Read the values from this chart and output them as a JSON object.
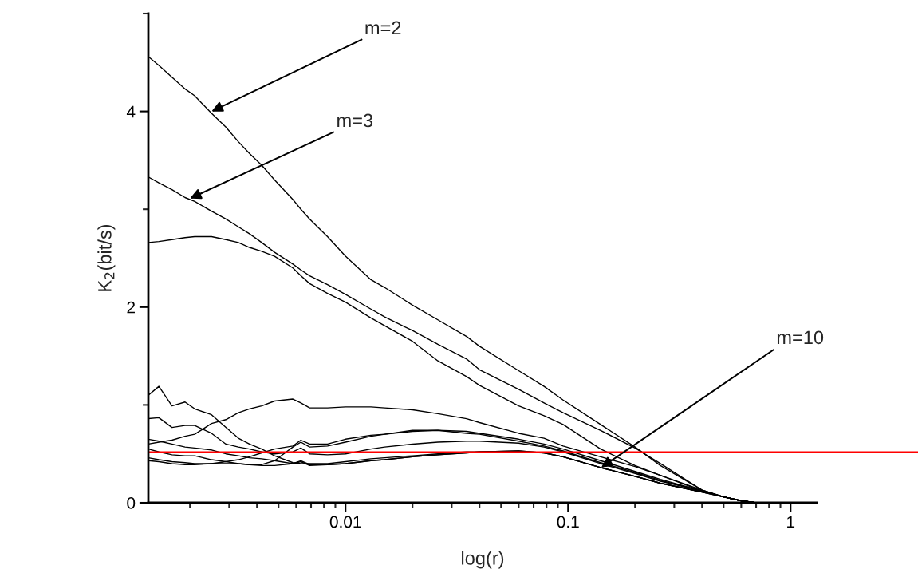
{
  "chart_data": {
    "type": "line",
    "xlabel": "log(r)",
    "ylabel": "K$_{2}$(bit/s)",
    "log": "x",
    "xlim": [
      0.0013,
      1.31
    ],
    "ylim": [
      0,
      5
    ],
    "xticks": [
      {
        "value": 0.002,
        "label": null
      },
      {
        "value": 0.003,
        "label": null
      },
      {
        "value": 0.004,
        "label": null
      },
      {
        "value": 0.005,
        "label": null
      },
      {
        "value": 0.006,
        "label": null
      },
      {
        "value": 0.007,
        "label": null
      },
      {
        "value": 0.008,
        "label": null
      },
      {
        "value": 0.009,
        "label": null
      },
      0.01,
      {
        "value": 0.02,
        "label": null
      },
      {
        "value": 0.03,
        "label": null
      },
      {
        "value": 0.04,
        "label": null
      },
      {
        "value": 0.05,
        "label": null
      },
      {
        "value": 0.06,
        "label": null
      },
      {
        "value": 0.07,
        "label": null
      },
      {
        "value": 0.08,
        "label": null
      },
      {
        "value": 0.09,
        "label": null
      },
      0.1,
      {
        "value": 0.2,
        "label": null
      },
      {
        "value": 0.3,
        "label": null
      },
      {
        "value": 0.4,
        "label": null
      },
      {
        "value": 0.5,
        "label": null
      },
      {
        "value": 0.6,
        "label": null
      },
      {
        "value": 0.7,
        "label": null
      },
      {
        "value": 0.8,
        "label": null
      },
      {
        "value": 0.9,
        "label": null
      },
      1
    ],
    "yticks": [
      0,
      {
        "value": 1,
        "label": null
      },
      2,
      {
        "value": 3,
        "label": null
      },
      4,
      {
        "value": 5,
        "label": null
      }
    ],
    "grid": false,
    "legend": false,
    "marker": "none",
    "line_style": "solid",
    "x": [
      0.0013,
      0.00145,
      0.00166,
      0.0019,
      0.0021,
      0.0025,
      0.0029,
      0.0033,
      0.0037,
      0.0042,
      0.0048,
      0.0058,
      0.0063,
      0.0069,
      0.0083,
      0.01,
      0.013,
      0.015,
      0.02,
      0.026,
      0.035,
      0.04,
      0.06,
      0.078,
      0.095,
      0.14,
      0.2,
      0.26,
      0.4,
      0.5,
      0.6,
      0.7
    ],
    "series": [
      {
        "color": "#000000",
        "values": [
          4.56,
          4.47,
          4.35,
          4.23,
          4.16,
          3.98,
          3.84,
          3.69,
          3.57,
          3.45,
          3.3,
          3.1,
          3.0,
          2.9,
          2.72,
          2.52,
          2.28,
          2.2,
          2.02,
          1.87,
          1.7,
          1.6,
          1.35,
          1.19,
          1.05,
          0.8,
          0.57,
          0.38,
          0.13,
          0.06,
          0.02,
          0
        ]
      },
      {
        "color": "#000000",
        "values": [
          3.33,
          3.27,
          3.2,
          3.12,
          3.08,
          2.98,
          2.9,
          2.82,
          2.75,
          2.66,
          2.56,
          2.44,
          2.38,
          2.32,
          2.23,
          2.13,
          1.98,
          1.9,
          1.76,
          1.62,
          1.47,
          1.36,
          1.16,
          1.02,
          0.92,
          0.74,
          0.56,
          0.4,
          0.13,
          0.06,
          0.02,
          0
        ]
      },
      {
        "color": "#000000",
        "values": [
          2.66,
          2.67,
          2.69,
          2.71,
          2.72,
          2.72,
          2.69,
          2.66,
          2.61,
          2.57,
          2.52,
          2.4,
          2.32,
          2.24,
          2.14,
          2.05,
          1.89,
          1.81,
          1.65,
          1.45,
          1.29,
          1.2,
          0.99,
          0.89,
          0.8,
          0.55,
          0.38,
          0.28,
          0.12,
          0.06,
          0.02,
          0
        ]
      },
      {
        "color": "#000000",
        "values": [
          1.1,
          1.19,
          0.99,
          1.03,
          0.96,
          0.9,
          0.77,
          0.66,
          0.6,
          0.55,
          0.48,
          0.41,
          0.4,
          0.4,
          0.4,
          0.42,
          0.45,
          0.46,
          0.48,
          0.5,
          0.52,
          0.52,
          0.53,
          0.51,
          0.47,
          0.36,
          0.27,
          0.2,
          0.11,
          0.06,
          0.02,
          0
        ]
      },
      {
        "color": "#000000",
        "values": [
          0.6,
          0.62,
          0.64,
          0.68,
          0.7,
          0.81,
          0.85,
          0.92,
          0.96,
          0.99,
          1.04,
          1.06,
          1.02,
          0.97,
          0.97,
          0.98,
          0.98,
          0.97,
          0.95,
          0.91,
          0.86,
          0.82,
          0.71,
          0.66,
          0.58,
          0.47,
          0.37,
          0.28,
          0.13,
          0.06,
          0.02,
          0
        ]
      },
      {
        "color": "#000000",
        "values": [
          0.86,
          0.87,
          0.77,
          0.79,
          0.79,
          0.71,
          0.6,
          0.57,
          0.55,
          0.52,
          0.5,
          0.52,
          0.56,
          0.5,
          0.49,
          0.5,
          0.55,
          0.57,
          0.6,
          0.62,
          0.63,
          0.63,
          0.61,
          0.57,
          0.52,
          0.4,
          0.3,
          0.22,
          0.12,
          0.06,
          0.02,
          0
        ]
      },
      {
        "color": "#000000",
        "values": [
          0.65,
          0.63,
          0.6,
          0.57,
          0.56,
          0.54,
          0.5,
          0.48,
          0.46,
          0.45,
          0.43,
          0.4,
          0.43,
          0.39,
          0.39,
          0.4,
          0.43,
          0.44,
          0.47,
          0.49,
          0.51,
          0.52,
          0.53,
          0.51,
          0.47,
          0.36,
          0.27,
          0.2,
          0.11,
          0.06,
          0.02,
          0
        ]
      },
      {
        "color": "#000000",
        "values": [
          0.55,
          0.52,
          0.49,
          0.48,
          0.48,
          0.44,
          0.42,
          0.4,
          0.39,
          0.39,
          0.43,
          0.57,
          0.62,
          0.57,
          0.58,
          0.62,
          0.68,
          0.7,
          0.74,
          0.74,
          0.73,
          0.71,
          0.65,
          0.6,
          0.55,
          0.43,
          0.32,
          0.24,
          0.12,
          0.06,
          0.02,
          0
        ]
      },
      {
        "color": "#000000",
        "values": [
          0.46,
          0.44,
          0.42,
          0.41,
          0.4,
          0.4,
          0.42,
          0.44,
          0.47,
          0.51,
          0.55,
          0.58,
          0.64,
          0.6,
          0.6,
          0.65,
          0.69,
          0.7,
          0.73,
          0.74,
          0.71,
          0.7,
          0.63,
          0.58,
          0.53,
          0.41,
          0.31,
          0.23,
          0.12,
          0.06,
          0.02,
          0
        ]
      },
      {
        "color": "#000000",
        "values": [
          0.43,
          0.42,
          0.4,
          0.39,
          0.39,
          0.4,
          0.4,
          0.4,
          0.39,
          0.38,
          0.38,
          0.4,
          0.42,
          0.38,
          0.39,
          0.4,
          0.43,
          0.44,
          0.47,
          0.49,
          0.51,
          0.52,
          0.52,
          0.51,
          0.47,
          0.36,
          0.27,
          0.2,
          0.11,
          0.06,
          0.02,
          0
        ]
      }
    ],
    "ref_lines": [
      {
        "axis": "y",
        "value": 0.52,
        "color": "#ff0000",
        "line_style": "solid"
      }
    ],
    "annotations": [
      {
        "text": "m=2",
        "x": 0.0025,
        "y": 4.0
      },
      {
        "text": "m=3",
        "x": 0.002,
        "y": 3.11
      },
      {
        "text": "m=10",
        "x": 0.141,
        "y": 0.36
      }
    ]
  }
}
